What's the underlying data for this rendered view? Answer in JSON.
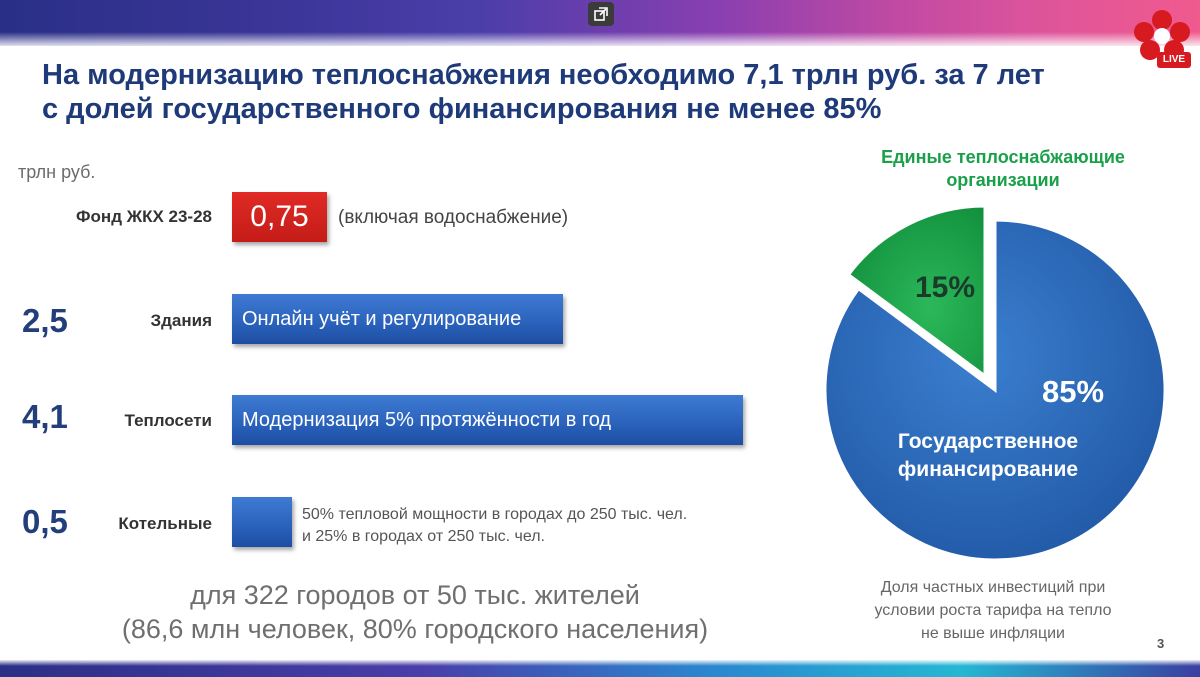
{
  "slide": {
    "title_line1": "На модернизацию теплоснабжения необходимо 7,1 трлн руб. за 7 лет",
    "title_line2": "с долей государственного финансирования не менее 85%",
    "unit": "трлн руб.",
    "page_number": "3",
    "live_label": "LIVE"
  },
  "rows": [
    {
      "label": "Фонд ЖКХ 23-28",
      "value": "0,75",
      "note": "(включая водоснабжение)"
    },
    {
      "number": "2,5",
      "label": "Здания",
      "bar_text": "Онлайн учёт и регулирование"
    },
    {
      "number": "4,1",
      "label": "Теплосети",
      "bar_text": "Модернизация 5% протяжённости в год"
    },
    {
      "number": "0,5",
      "label": "Котельные",
      "note_line1": "50% тепловой мощности в городах до 250 тыс. чел.",
      "note_line2": "и 25% в городах от 250 тыс. чел."
    }
  ],
  "footer": {
    "line1": "для 322 городов от 50 тыс. жителей",
    "line2": "(86,6 млн человек, 80% городского населения)"
  },
  "pie": {
    "heading_line1": "Единые теплоснабжающие",
    "heading_line2": "организации",
    "green_pct": "15%",
    "blue_pct": "85%",
    "blue_label_line1": "Государственное",
    "blue_label_line2": "финансирование",
    "note_line1": "Доля частных инвестиций при",
    "note_line2": "условии роста тарифа на тепло",
    "note_line3": "не выше инфляции",
    "colors": {
      "green": "#1aa04a",
      "blue": "#2a6ab9"
    }
  }
}
